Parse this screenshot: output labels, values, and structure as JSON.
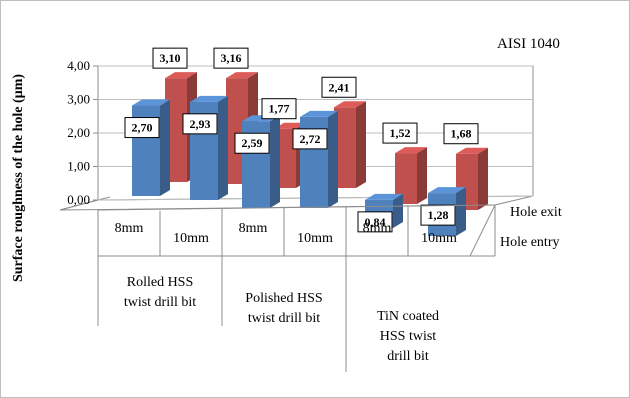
{
  "chart_data": {
    "type": "bar",
    "title": "AISI 1040",
    "ylabel": "Surface roughness of the hole (µm)",
    "ylim": [
      0,
      4
    ],
    "yticks": [
      "0,00",
      "1,00",
      "2,00",
      "3,00",
      "4,00"
    ],
    "subcategories": [
      "8mm",
      "10mm",
      "8mm",
      "10mm",
      "8mm",
      "10mm"
    ],
    "groups": [
      {
        "lines": [
          "Rolled HSS",
          "twist drill bit"
        ]
      },
      {
        "lines": [
          "Polished HSS",
          "twist drill bit"
        ]
      },
      {
        "lines": [
          "TiN  coated",
          "HSS twist",
          "drill bit"
        ]
      }
    ],
    "series": [
      {
        "name": "Hole entry",
        "color": "#4f81bd",
        "values": [
          2.7,
          2.93,
          2.59,
          2.72,
          0.84,
          1.28
        ],
        "labels": [
          "2,70",
          "2,93",
          "2,59",
          "2,72",
          "0,84",
          "1,28"
        ]
      },
      {
        "name": "Hole exit",
        "color": "#c0504d",
        "values": [
          3.1,
          3.16,
          1.77,
          2.41,
          1.52,
          1.68
        ],
        "labels": [
          "3,10",
          "3,16",
          "1,77",
          "2,41",
          "1,52",
          "1,68"
        ]
      }
    ]
  }
}
